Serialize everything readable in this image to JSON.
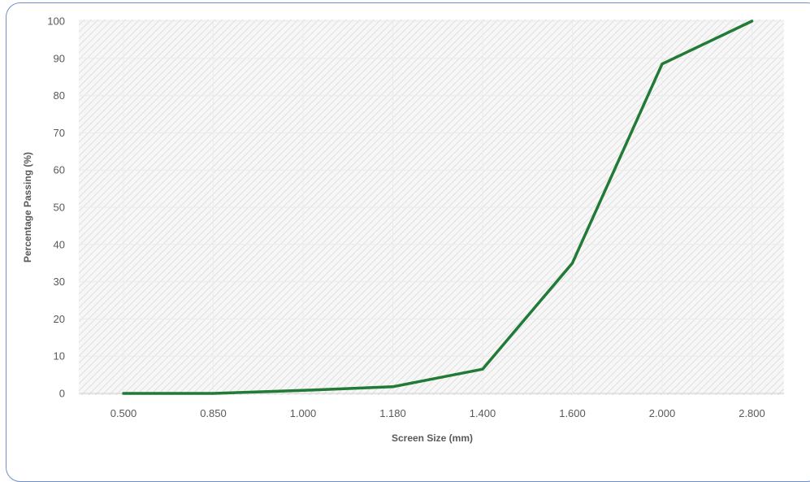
{
  "chart_data": {
    "type": "line",
    "title": "",
    "xlabel": "Screen Size (mm)",
    "ylabel": "Percentage Passing (%)",
    "categories": [
      "0.500",
      "0.850",
      "1.000",
      "1.180",
      "1.400",
      "1.600",
      "2.000",
      "2.800"
    ],
    "series": [
      {
        "values": [
          0,
          0,
          0.8,
          1.8,
          6.5,
          35,
          88.5,
          100
        ],
        "color": "#217a35"
      }
    ],
    "ylim": [
      0,
      100
    ],
    "yticks": [
      0,
      10,
      20,
      30,
      40,
      50,
      60,
      70,
      80,
      90,
      100
    ],
    "grid": true,
    "legend": "none",
    "plot_background": "hatched light gray",
    "frame_color": "#6f8fc9"
  }
}
